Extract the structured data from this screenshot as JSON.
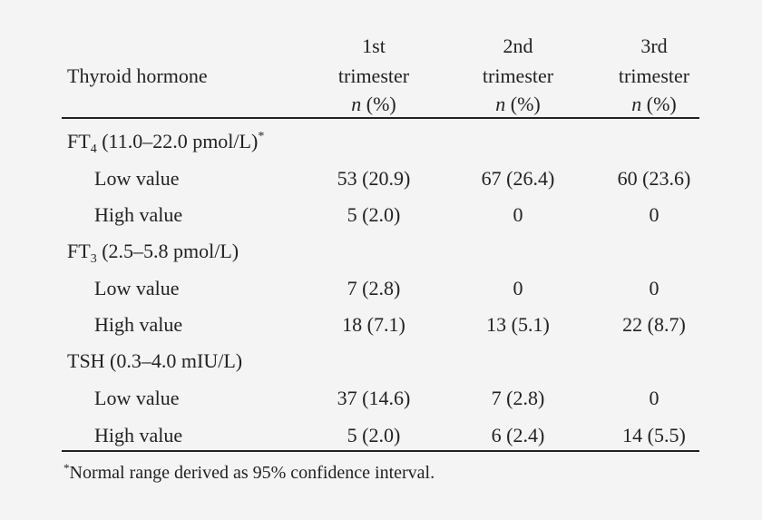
{
  "table": {
    "header": {
      "label": "Thyroid hormone",
      "columns": [
        {
          "line1": "1st",
          "line2": "trimester",
          "n": "n",
          "pct": "(%)"
        },
        {
          "line1": "2nd",
          "line2": "trimester",
          "n": "n",
          "pct": "(%)"
        },
        {
          "line1": "3rd",
          "line2": "trimester",
          "n": "n",
          "pct": "(%)"
        }
      ]
    },
    "groups": [
      {
        "name_pre": "FT",
        "name_sub": "4",
        "name_post": " (11.0–22.0 pmol/L)",
        "name_sup": "*",
        "rows": [
          {
            "label": "Low value",
            "values": [
              "53 (20.9)",
              "67 (26.4)",
              "60 (23.6)"
            ]
          },
          {
            "label": "High value",
            "values": [
              "5 (2.0)",
              "0",
              "0"
            ]
          }
        ]
      },
      {
        "name_pre": "FT",
        "name_sub": "3",
        "name_post": " (2.5–5.8 pmol/L)",
        "name_sup": "",
        "rows": [
          {
            "label": "Low value",
            "values": [
              "7 (2.8)",
              "0",
              "0"
            ]
          },
          {
            "label": "High value",
            "values": [
              "18 (7.1)",
              "13 (5.1)",
              "22 (8.7)"
            ]
          }
        ]
      },
      {
        "name_pre": "TSH (0.3–4.0 mIU/L)",
        "name_sub": "",
        "name_post": "",
        "name_sup": "",
        "rows": [
          {
            "label": "Low value",
            "values": [
              "37 (14.6)",
              "7 (2.8)",
              "0"
            ]
          },
          {
            "label": "High value",
            "values": [
              "5 (2.0)",
              "6 (2.4)",
              "14 (5.5)"
            ]
          }
        ]
      }
    ],
    "footnote": {
      "mark": "*",
      "text": "Normal range derived as 95% confidence interval."
    }
  }
}
